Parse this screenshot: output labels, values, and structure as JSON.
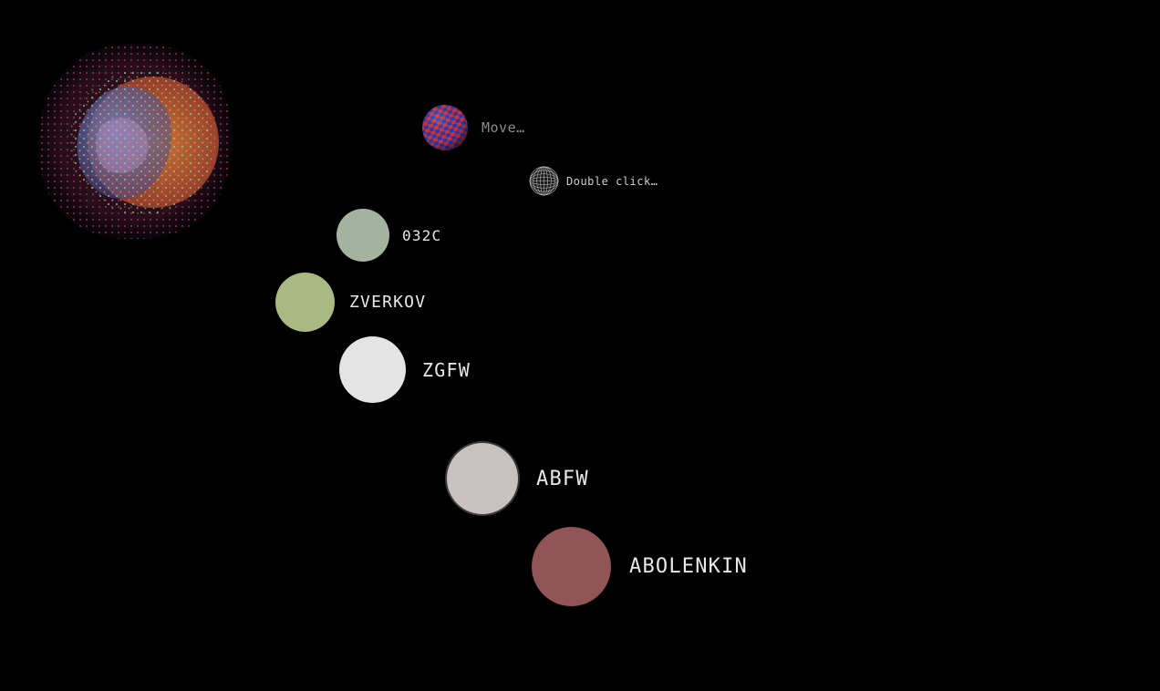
{
  "hints": {
    "move_label": "Move…",
    "double_click_label": "Double click…"
  },
  "nodes": [
    {
      "label": "032C",
      "color": "#a3b39e"
    },
    {
      "label": "ZVERKOV",
      "color": "#a9b981"
    },
    {
      "label": "ZGFW",
      "color": "#e4e4e4"
    },
    {
      "label": "ABFW",
      "color": "#c9c1c1"
    },
    {
      "label": "ABOLENKIN",
      "color": "#925556"
    }
  ],
  "colors": {
    "background": "#000000",
    "label_text": "#e8e8e8",
    "hint_text": "#8b8b8b"
  },
  "icons": {
    "blob": "glowing-sphere-icon",
    "move": "checkered-ball-icon",
    "double_click": "wireframe-sphere-icon"
  }
}
